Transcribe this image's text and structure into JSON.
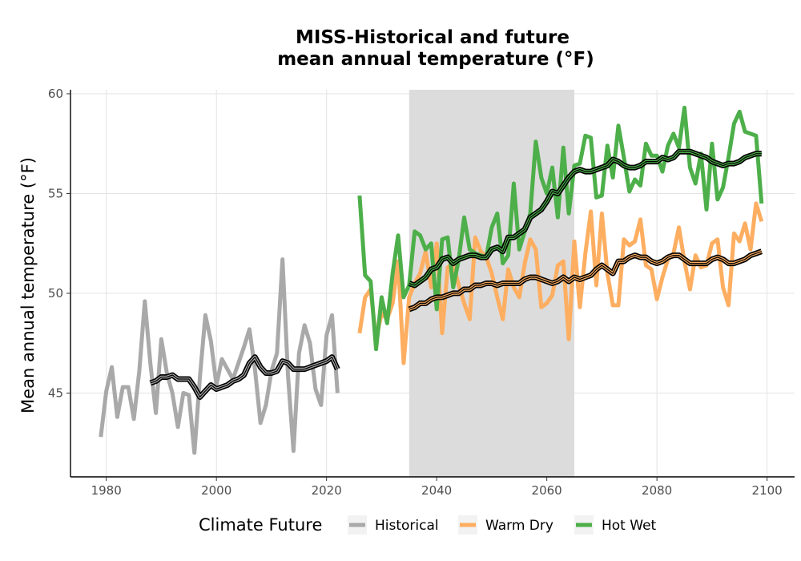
{
  "chart_data": {
    "type": "line",
    "title": "MISS-Historical and future",
    "subtitle": "mean annual temperature (°F)",
    "xlabel": "",
    "ylabel": "Mean annual temperature (°F)",
    "xlim": [
      1973.5,
      2105
    ],
    "ylim": [
      40.8,
      60.2
    ],
    "xticks": [
      1980,
      2000,
      2020,
      2040,
      2060,
      2080,
      2100
    ],
    "yticks": [
      45,
      50,
      55,
      60
    ],
    "grid": true,
    "shaded_band": [
      2035,
      2065
    ],
    "legend": {
      "title": "Climate Future",
      "placement": "bottom",
      "items": [
        {
          "label": "Historical",
          "color": "#a9a9a9"
        },
        {
          "label": "Warm Dry",
          "color": "#fdae61"
        },
        {
          "label": "Hot Wet",
          "color": "#4daf4a"
        }
      ]
    },
    "series": [
      {
        "name": "Historical",
        "color": "#a9a9a9",
        "x": [
          1979,
          1980,
          1981,
          1982,
          1983,
          1984,
          1985,
          1986,
          1987,
          1988,
          1989,
          1990,
          1991,
          1992,
          1993,
          1994,
          1995,
          1996,
          1997,
          1998,
          1999,
          2000,
          2001,
          2002,
          2003,
          2004,
          2005,
          2006,
          2007,
          2008,
          2009,
          2010,
          2011,
          2012,
          2013,
          2014,
          2015,
          2016,
          2017,
          2018,
          2019,
          2020,
          2021,
          2022
        ],
        "y": [
          42.8,
          45.1,
          46.3,
          43.8,
          45.3,
          45.3,
          43.7,
          46.1,
          49.6,
          46.5,
          44.0,
          47.7,
          46.0,
          45.0,
          43.3,
          45.0,
          44.9,
          42.0,
          45.8,
          48.9,
          47.6,
          45.4,
          46.7,
          46.2,
          45.7,
          46.5,
          47.3,
          48.2,
          46.2,
          43.5,
          44.4,
          46.1,
          47.0,
          51.7,
          45.9,
          42.1,
          47.0,
          48.4,
          47.5,
          45.2,
          44.4,
          47.9,
          48.9,
          45.0
        ]
      },
      {
        "name": "Historical smooth",
        "color": "#000000",
        "x": [
          1988,
          1989,
          1990,
          1991,
          1992,
          1993,
          1994,
          1995,
          1996,
          1997,
          1998,
          1999,
          2000,
          2001,
          2002,
          2003,
          2004,
          2005,
          2006,
          2007,
          2008,
          2009,
          2010,
          2011,
          2012,
          2013,
          2014,
          2015,
          2016,
          2017,
          2018,
          2019,
          2020,
          2021,
          2022
        ],
        "y": [
          45.5,
          45.6,
          45.8,
          45.8,
          45.9,
          45.7,
          45.7,
          45.7,
          45.3,
          44.8,
          45.1,
          45.4,
          45.2,
          45.3,
          45.4,
          45.6,
          45.7,
          45.9,
          46.5,
          46.8,
          46.3,
          46.0,
          46.0,
          46.1,
          46.6,
          46.5,
          46.2,
          46.2,
          46.2,
          46.3,
          46.4,
          46.5,
          46.6,
          46.8,
          46.2
        ]
      },
      {
        "name": "Warm Dry",
        "color": "#fdae61",
        "x": [
          2026,
          2027,
          2028,
          2029,
          2030,
          2031,
          2032,
          2033,
          2034,
          2035,
          2036,
          2037,
          2038,
          2039,
          2040,
          2041,
          2042,
          2043,
          2044,
          2045,
          2046,
          2047,
          2048,
          2049,
          2050,
          2051,
          2052,
          2053,
          2054,
          2055,
          2056,
          2057,
          2058,
          2059,
          2060,
          2061,
          2062,
          2063,
          2064,
          2065,
          2066,
          2067,
          2068,
          2069,
          2070,
          2071,
          2072,
          2073,
          2074,
          2075,
          2076,
          2077,
          2078,
          2079,
          2080,
          2081,
          2082,
          2083,
          2084,
          2085,
          2086,
          2087,
          2088,
          2089,
          2090,
          2091,
          2092,
          2093,
          2094,
          2095,
          2096,
          2097,
          2098,
          2099
        ],
        "y": [
          48.0,
          49.8,
          50.2,
          47.7,
          49.0,
          48.7,
          49.5,
          51.6,
          46.5,
          49.8,
          50.5,
          51.0,
          52.1,
          50.3,
          52.5,
          48.0,
          51.3,
          51.5,
          50.4,
          49.5,
          48.7,
          52.8,
          52.1,
          51.8,
          51.0,
          49.8,
          48.7,
          51.2,
          50.3,
          49.8,
          51.5,
          52.7,
          52.2,
          49.3,
          49.5,
          49.9,
          51.4,
          51.6,
          47.7,
          52.6,
          49.3,
          52.0,
          54.1,
          50.4,
          54.0,
          51.0,
          49.4,
          49.4,
          52.7,
          52.4,
          52.6,
          53.7,
          51.4,
          51.2,
          49.7,
          50.8,
          51.7,
          52.0,
          53.3,
          51.6,
          50.2,
          51.9,
          51.3,
          51.4,
          52.5,
          52.7,
          50.3,
          49.4,
          53.0,
          52.6,
          53.5,
          52.2,
          54.5,
          53.6
        ]
      },
      {
        "name": "Warm Dry smooth",
        "color": "#000000",
        "x": [
          2035,
          2036,
          2037,
          2038,
          2039,
          2040,
          2041,
          2042,
          2043,
          2044,
          2045,
          2046,
          2047,
          2048,
          2049,
          2050,
          2051,
          2052,
          2053,
          2054,
          2055,
          2056,
          2057,
          2058,
          2059,
          2060,
          2061,
          2062,
          2063,
          2064,
          2065,
          2066,
          2067,
          2068,
          2069,
          2070,
          2071,
          2072,
          2073,
          2074,
          2075,
          2076,
          2077,
          2078,
          2079,
          2080,
          2081,
          2082,
          2083,
          2084,
          2085,
          2086,
          2087,
          2088,
          2089,
          2090,
          2091,
          2092,
          2093,
          2094,
          2095,
          2096,
          2097,
          2098,
          2099
        ],
        "y": [
          49.2,
          49.3,
          49.5,
          49.5,
          49.7,
          49.8,
          49.8,
          49.9,
          50.0,
          50.0,
          50.2,
          50.2,
          50.4,
          50.4,
          50.5,
          50.5,
          50.4,
          50.5,
          50.5,
          50.5,
          50.5,
          50.7,
          50.8,
          50.8,
          50.7,
          50.6,
          50.5,
          50.6,
          50.8,
          50.6,
          50.8,
          50.7,
          50.8,
          50.9,
          51.2,
          51.4,
          51.2,
          51.0,
          51.6,
          51.6,
          51.8,
          51.9,
          51.8,
          51.8,
          51.6,
          51.5,
          51.6,
          51.8,
          51.9,
          51.9,
          51.7,
          51.5,
          51.5,
          51.5,
          51.5,
          51.7,
          51.8,
          51.7,
          51.5,
          51.5,
          51.6,
          51.7,
          51.9,
          52.0,
          52.1
        ]
      },
      {
        "name": "Hot Wet",
        "color": "#4daf4a",
        "x": [
          2026,
          2027,
          2028,
          2029,
          2030,
          2031,
          2032,
          2033,
          2034,
          2035,
          2036,
          2037,
          2038,
          2039,
          2040,
          2041,
          2042,
          2043,
          2044,
          2045,
          2046,
          2047,
          2048,
          2049,
          2050,
          2051,
          2052,
          2053,
          2054,
          2055,
          2056,
          2057,
          2058,
          2059,
          2060,
          2061,
          2062,
          2063,
          2064,
          2065,
          2066,
          2067,
          2068,
          2069,
          2070,
          2071,
          2072,
          2073,
          2074,
          2075,
          2076,
          2077,
          2078,
          2079,
          2080,
          2081,
          2082,
          2083,
          2084,
          2085,
          2086,
          2087,
          2088,
          2089,
          2090,
          2091,
          2092,
          2093,
          2094,
          2095,
          2096,
          2097,
          2098,
          2099
        ],
        "y": [
          54.9,
          50.9,
          50.6,
          47.2,
          49.8,
          48.5,
          51.0,
          52.9,
          49.8,
          50.4,
          53.1,
          52.9,
          52.2,
          52.5,
          49.2,
          52.7,
          52.8,
          50.3,
          51.7,
          53.8,
          52.2,
          52.0,
          51.9,
          51.8,
          53.3,
          54.0,
          51.5,
          51.9,
          55.5,
          52.2,
          53.1,
          54.0,
          57.6,
          55.8,
          55.0,
          56.3,
          53.8,
          57.3,
          54.0,
          56.4,
          56.5,
          57.9,
          57.8,
          54.8,
          54.9,
          57.4,
          55.8,
          58.4,
          56.8,
          55.1,
          55.7,
          55.4,
          57.5,
          56.9,
          56.9,
          56.1,
          57.4,
          58.0,
          57.3,
          59.3,
          56.3,
          55.5,
          57.0,
          54.2,
          57.5,
          54.7,
          55.3,
          56.8,
          58.5,
          59.1,
          58.1,
          58.0,
          57.9,
          54.5
        ]
      },
      {
        "name": "Hot Wet smooth",
        "color": "#000000",
        "x": [
          2035,
          2036,
          2037,
          2038,
          2039,
          2040,
          2041,
          2042,
          2043,
          2044,
          2045,
          2046,
          2047,
          2048,
          2049,
          2050,
          2051,
          2052,
          2053,
          2054,
          2055,
          2056,
          2057,
          2058,
          2059,
          2060,
          2061,
          2062,
          2063,
          2064,
          2065,
          2066,
          2067,
          2068,
          2069,
          2070,
          2071,
          2072,
          2073,
          2074,
          2075,
          2076,
          2077,
          2078,
          2079,
          2080,
          2081,
          2082,
          2083,
          2084,
          2085,
          2086,
          2087,
          2088,
          2089,
          2090,
          2091,
          2092,
          2093,
          2094,
          2095,
          2096,
          2097,
          2098,
          2099
        ],
        "y": [
          50.5,
          50.4,
          50.6,
          50.8,
          51.2,
          51.3,
          51.7,
          51.8,
          51.5,
          51.7,
          51.8,
          51.9,
          51.9,
          51.8,
          51.8,
          52.2,
          52.3,
          52.1,
          52.8,
          52.8,
          53.0,
          53.2,
          53.8,
          54.0,
          54.2,
          54.6,
          55.1,
          55.0,
          55.4,
          55.8,
          56.1,
          56.2,
          56.1,
          56.1,
          56.2,
          56.3,
          56.4,
          56.7,
          56.6,
          56.4,
          56.3,
          56.3,
          56.4,
          56.6,
          56.6,
          56.6,
          56.8,
          56.7,
          56.8,
          57.1,
          57.1,
          57.1,
          57.0,
          56.9,
          56.8,
          56.6,
          56.5,
          56.4,
          56.5,
          56.5,
          56.6,
          56.8,
          56.9,
          57.0,
          57.0
        ]
      }
    ]
  }
}
